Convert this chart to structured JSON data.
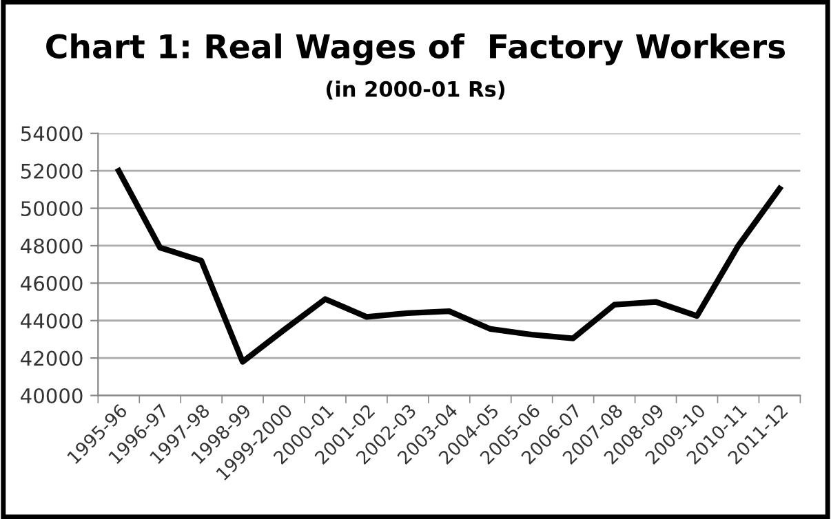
{
  "chart_data": {
    "type": "line",
    "title": "Chart 1: Real Wages of  Factory Workers",
    "subtitle": "(in 2000-01 Rs)",
    "categories": [
      "1995-96",
      "1996-97",
      "1997-98",
      "1998-99",
      "1999-2000",
      "2000-01",
      "2001-02",
      "2002-03",
      "2003-04",
      "2004-05",
      "2005-06",
      "2006-07",
      "2007-08",
      "2008-09",
      "2009-10",
      "2010-11",
      "2011-12"
    ],
    "series": [
      {
        "color": "#000000",
        "values": [
          52000,
          47900,
          47200,
          41800,
          43500,
          45150,
          44200,
          44400,
          44500,
          43550,
          43250,
          43050,
          44850,
          45000,
          44250,
          48000,
          51050
        ]
      }
    ],
    "ylim": [
      40000,
      54000
    ],
    "yticks": [
      40000,
      42000,
      44000,
      46000,
      48000,
      50000,
      52000,
      54000
    ],
    "grid": "y",
    "legend": false,
    "marker": "none",
    "line_style": "solid"
  }
}
